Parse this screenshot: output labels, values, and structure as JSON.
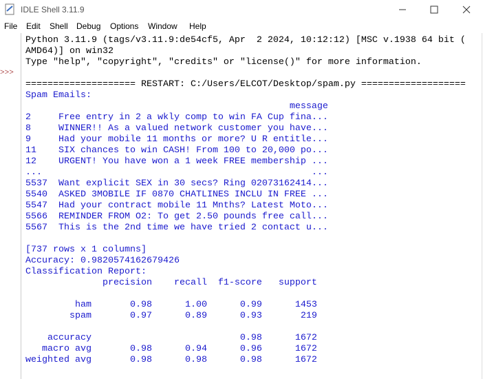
{
  "window": {
    "title": "IDLE Shell 3.11.9"
  },
  "menu": [
    "File",
    "Edit",
    "Shell",
    "Debug",
    "Options",
    "Window",
    "Help"
  ],
  "shell": {
    "prompt": ">>>",
    "banner": [
      "Python 3.11.9 (tags/v3.11.9:de54cf5, Apr  2 2024, 10:12:12) [MSC v.1938 64 bit (",
      "AMD64)] on win32",
      "Type \"help\", \"copyright\", \"credits\" or \"license()\" for more information."
    ],
    "restart": "==================== RESTART: C:/Users/ELCOT/Desktop/spam.py ===================",
    "output": [
      [
        "Spam Emails:",
        "                                                message",
        "2     Free entry in 2 a wkly comp to win FA Cup fina...",
        "8     WINNER!! As a valued network customer you have...",
        "9     Had your mobile 11 months or more? U R entitle...",
        "11    SIX chances to win CASH! From 100 to 20,000 po...",
        "12    URGENT! You have won a 1 week FREE membership ...",
        "...                                                 ...",
        "5537  Want explicit SEX in 30 secs? Ring 02073162414...",
        "5540  ASKED 3MOBILE IF 0870 CHATLINES INCLU IN FREE ...",
        "5547  Had your contract mobile 11 Mnths? Latest Moto...",
        "5566  REMINDER FROM O2: To get 2.50 pounds free call...",
        "5567  This is the 2nd time we have tried 2 contact u..."
      ],
      [
        "[737 rows x 1 columns]",
        "Accuracy: 0.9820574162679426",
        "Classification Report:",
        "              precision    recall  f1-score   support"
      ],
      [
        "         ham       0.98      1.00      0.99      1453",
        "        spam       0.97      0.89      0.93       219"
      ],
      [
        "    accuracy                           0.98      1672",
        "   macro avg       0.98      0.94      0.96      1672",
        "weighted avg       0.98      0.98      0.98      1672"
      ]
    ]
  }
}
